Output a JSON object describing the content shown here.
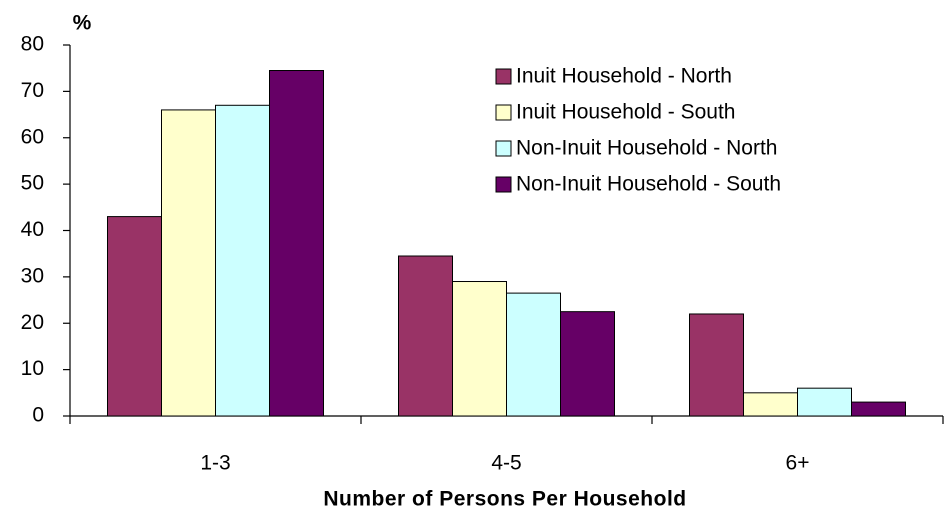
{
  "chart_data": {
    "type": "bar",
    "y_label": "%",
    "x_label": "Number of Persons Per Household",
    "categories": [
      "1-3",
      "4-5",
      "6+"
    ],
    "series": [
      {
        "name": "Inuit Household - North",
        "color": "#993366",
        "values": [
          43,
          34.5,
          22
        ]
      },
      {
        "name": "Inuit Household - South",
        "color": "#ffffcc",
        "values": [
          66,
          29,
          5
        ]
      },
      {
        "name": "Non-Inuit Household - North",
        "color": "#ccffff",
        "values": [
          67,
          26.5,
          6
        ]
      },
      {
        "name": "Non-Inuit Household - South",
        "color": "#660066",
        "values": [
          74.5,
          22.5,
          3
        ]
      }
    ],
    "ylim": [
      0,
      80
    ],
    "yticks": [
      0,
      10,
      20,
      30,
      40,
      50,
      60,
      70,
      80
    ],
    "grid": false,
    "legend": "upper right"
  }
}
